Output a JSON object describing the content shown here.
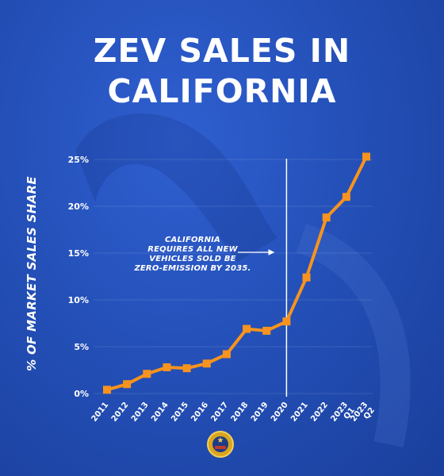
{
  "title_line1": "ZEV SALES IN",
  "title_line2": "CALIFORNIA",
  "annotation": {
    "lines": [
      "CALIFORNIA",
      "REQUIRES ALL NEW",
      "VEHICLES SOLD BE",
      "ZERO-EMISSION BY 2035."
    ]
  },
  "colors": {
    "line": "#f7931e",
    "background": "#2450b8",
    "text": "#ffffff"
  },
  "icons": {
    "arrow": "right-arrow-icon",
    "seal": "state-seal-icon"
  },
  "chart_data": {
    "type": "line",
    "title": "ZEV SALES IN CALIFORNIA",
    "ylabel": "% OF MARKET SALES SHARE",
    "xlabel": "",
    "categories": [
      "2011",
      "2012",
      "2013",
      "2014",
      "2015",
      "2016",
      "2017",
      "2018",
      "2019",
      "2020",
      "2021",
      "2022",
      "2023 Q1",
      "2023 Q2"
    ],
    "tick_lines": [
      [
        "2011"
      ],
      [
        "2012"
      ],
      [
        "2013"
      ],
      [
        "2014"
      ],
      [
        "2015"
      ],
      [
        "2016"
      ],
      [
        "2017"
      ],
      [
        "2018"
      ],
      [
        "2019"
      ],
      [
        "2020"
      ],
      [
        "2021"
      ],
      [
        "2022"
      ],
      [
        "2023",
        "Q1"
      ],
      [
        "2023",
        "Q2"
      ]
    ],
    "values": [
      0.4,
      1.0,
      2.1,
      2.8,
      2.7,
      3.2,
      4.2,
      6.9,
      6.7,
      7.7,
      12.4,
      18.8,
      21.0,
      25.3
    ],
    "ylim": [
      0,
      25
    ],
    "yticks": [
      "0%",
      "5%",
      "10%",
      "15%",
      "20%",
      "25%"
    ],
    "ytick_values": [
      0,
      5,
      10,
      15,
      20,
      25
    ],
    "marker_line_at": "2020",
    "grid": true,
    "legend": "none"
  }
}
